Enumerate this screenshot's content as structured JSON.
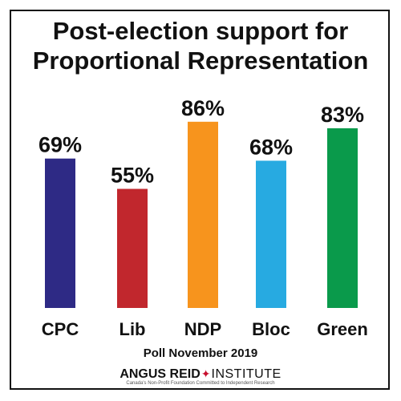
{
  "chart_data": {
    "type": "bar",
    "title_line1": "Post-election support for",
    "title_line2": "Proportional Representation",
    "categories": [
      "CPC",
      "Lib",
      "NDP",
      "Bloc",
      "Green"
    ],
    "values": [
      69,
      55,
      86,
      68,
      83
    ],
    "value_labels": [
      "69%",
      "55%",
      "86%",
      "68%",
      "83%"
    ],
    "colors": [
      "#2e2a85",
      "#c1272d",
      "#f7941d",
      "#27aae1",
      "#0a9a4b"
    ],
    "ylim": [
      0,
      100
    ],
    "grid": false,
    "legend": "none"
  },
  "footer": {
    "note": "Poll November 2019",
    "brand_left": "ANGUS REID",
    "brand_leaf_icon": "maple-leaf-icon",
    "brand_right": "INSTITUTE",
    "tagline": "Canada's Non-Profit Foundation Committed to Independent Research"
  }
}
